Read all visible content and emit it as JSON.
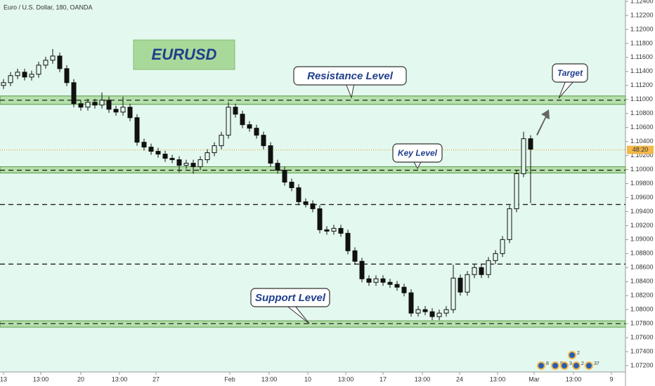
{
  "chart_data": {
    "type": "candlestick",
    "title": "Euro / U.S. Dollar, 180, OANDA",
    "color": "#111111",
    "background": "#e3f8ee",
    "open": [
      1.112,
      1.1124,
      1.1134,
      1.1139,
      1.1132,
      1.1136,
      1.1149,
      1.1156,
      1.1162,
      1.1144,
      1.1124,
      1.1094,
      1.1089,
      1.1096,
      1.1092,
      1.1099,
      1.1086,
      1.1082,
      1.1089,
      1.1074,
      1.1039,
      1.1032,
      1.1026,
      1.1022,
      1.1016,
      1.1014,
      1.1006,
      1.1009,
      1.1004,
      1.1014,
      1.1024,
      1.1034,
      1.1049,
      1.1089,
      1.1079,
      1.1064,
      1.1059,
      1.1049,
      1.1034,
      1.1009,
      1.0999,
      1.0982,
      1.0974,
      1.0954,
      1.0951,
      1.0944,
      1.0914,
      1.0912,
      1.0916,
      1.0909,
      1.0884,
      1.0869,
      1.0844,
      1.0839,
      1.0844,
      1.0839,
      1.0836,
      1.0832,
      1.0824,
      1.0795,
      1.08,
      1.0797,
      1.079,
      1.0795,
      1.08,
      1.0845,
      1.0825,
      1.085,
      1.086,
      1.085,
      1.087,
      1.088,
      1.09,
      1.0944,
      1.0994,
      1.1044
    ],
    "high": [
      1.1129,
      1.1139,
      1.1144,
      1.1144,
      1.1141,
      1.1154,
      1.1161,
      1.1172,
      1.1167,
      1.1149,
      1.1129,
      1.1099,
      1.1101,
      1.1101,
      1.111,
      1.1104,
      1.1091,
      1.1104,
      1.1094,
      1.1079,
      1.1044,
      1.1037,
      1.1031,
      1.1027,
      1.1021,
      1.1019,
      1.1014,
      1.1014,
      1.1019,
      1.1029,
      1.1039,
      1.1054,
      1.1096,
      1.1094,
      1.1084,
      1.1069,
      1.1064,
      1.1054,
      1.1039,
      1.1014,
      1.1004,
      1.0987,
      1.0979,
      1.0959,
      1.0956,
      1.0949,
      1.0919,
      1.0921,
      1.0921,
      1.0914,
      1.0889,
      1.0874,
      1.0849,
      1.0849,
      1.0849,
      1.0844,
      1.0841,
      1.0837,
      1.0829,
      1.0805,
      1.0805,
      1.0802,
      1.08,
      1.0805,
      1.0864,
      1.085,
      1.0855,
      1.0865,
      1.0865,
      1.0875,
      1.0885,
      1.0905,
      1.0949,
      1.0999,
      1.1054,
      1.1049
    ],
    "low": [
      1.1115,
      1.1119,
      1.1129,
      1.1127,
      1.1127,
      1.1131,
      1.1144,
      1.1151,
      1.1139,
      1.1119,
      1.1089,
      1.1084,
      1.1084,
      1.1087,
      1.1087,
      1.1081,
      1.1077,
      1.1077,
      1.1069,
      1.1034,
      1.1027,
      1.1021,
      1.1017,
      1.1011,
      1.1009,
      1.0996,
      1.1001,
      1.0994,
      1.0999,
      1.1009,
      1.1019,
      1.1029,
      1.1044,
      1.1074,
      1.1059,
      1.1054,
      1.1044,
      1.1029,
      1.1004,
      1.0994,
      1.0977,
      1.0969,
      1.0949,
      1.0946,
      1.0939,
      1.0909,
      1.0907,
      1.0907,
      1.0904,
      1.0879,
      1.0864,
      1.0839,
      1.0834,
      1.0834,
      1.0834,
      1.0831,
      1.0827,
      1.0819,
      1.079,
      1.079,
      1.0792,
      1.0785,
      1.0785,
      1.079,
      1.0795,
      1.082,
      1.082,
      1.0845,
      1.0845,
      1.0845,
      1.0865,
      1.0875,
      1.0895,
      1.0939,
      1.0989,
      1.0952
    ],
    "close": [
      1.1124,
      1.1134,
      1.1139,
      1.1132,
      1.1136,
      1.1149,
      1.1156,
      1.1162,
      1.1144,
      1.1124,
      1.1094,
      1.1089,
      1.1096,
      1.1092,
      1.1099,
      1.1086,
      1.1082,
      1.1089,
      1.1074,
      1.1039,
      1.1032,
      1.1026,
      1.1022,
      1.1016,
      1.1014,
      1.1006,
      1.1009,
      1.1004,
      1.1014,
      1.1024,
      1.1034,
      1.1049,
      1.1089,
      1.1079,
      1.1064,
      1.1059,
      1.1049,
      1.1034,
      1.1009,
      1.0999,
      1.0982,
      1.0974,
      1.0954,
      1.0951,
      1.0944,
      1.0914,
      1.0912,
      1.0916,
      1.0909,
      1.0884,
      1.0869,
      1.0844,
      1.0839,
      1.0844,
      1.0839,
      1.0836,
      1.0832,
      1.0824,
      1.0795,
      1.08,
      1.0797,
      1.079,
      1.0795,
      1.08,
      1.0845,
      1.0825,
      1.085,
      1.086,
      1.085,
      1.087,
      1.088,
      1.09,
      1.0944,
      1.0994,
      1.1044,
      1.1029
    ],
    "xlim": [
      -0.5,
      88.5
    ],
    "xticks": [
      {
        "value": 0,
        "label": "13"
      },
      {
        "value": 5.3,
        "label": "13:00"
      },
      {
        "value": 11,
        "label": "20"
      },
      {
        "value": 16.5,
        "label": "13:00"
      },
      {
        "value": 21.7,
        "label": "27"
      },
      {
        "value": 32.2,
        "label": "Feb"
      },
      {
        "value": 37.8,
        "label": "13:00"
      },
      {
        "value": 43.3,
        "label": "10"
      },
      {
        "value": 48.7,
        "label": "13:00"
      },
      {
        "value": 54,
        "label": "17"
      },
      {
        "value": 59.6,
        "label": "13:00"
      },
      {
        "value": 64.9,
        "label": "24"
      },
      {
        "value": 70.3,
        "label": "13:00"
      },
      {
        "value": 75.5,
        "label": "Mar"
      },
      {
        "value": 81.1,
        "label": "13:00"
      },
      {
        "value": 86.5,
        "label": "9"
      }
    ],
    "ylim": [
      1.0711,
      1.1242
    ],
    "yticks": [
      {
        "value": 1.072,
        "label": "1.07200"
      },
      {
        "value": 1.074,
        "label": "1.07400"
      },
      {
        "value": 1.076,
        "label": "1.07600"
      },
      {
        "value": 1.078,
        "label": "1.07800"
      },
      {
        "value": 1.08,
        "label": "1.08000"
      },
      {
        "value": 1.082,
        "label": "1.08200"
      },
      {
        "value": 1.084,
        "label": "1.08400"
      },
      {
        "value": 1.086,
        "label": "1.08600"
      },
      {
        "value": 1.088,
        "label": "1.08800"
      },
      {
        "value": 1.09,
        "label": "1.09000"
      },
      {
        "value": 1.092,
        "label": "1.09200"
      },
      {
        "value": 1.094,
        "label": "1.09400"
      },
      {
        "value": 1.096,
        "label": "1.09600"
      },
      {
        "value": 1.098,
        "label": "1.09800"
      },
      {
        "value": 1.1,
        "label": "1.10000"
      },
      {
        "value": 1.102,
        "label": "1.10200"
      },
      {
        "value": 1.104,
        "label": "1.10400"
      },
      {
        "value": 1.106,
        "label": "1.10600"
      },
      {
        "value": 1.108,
        "label": "1.10800"
      },
      {
        "value": 1.11,
        "label": "1.11000"
      },
      {
        "value": 1.112,
        "label": "1.11200"
      },
      {
        "value": 1.114,
        "label": "1.11400"
      },
      {
        "value": 1.116,
        "label": "1.11600"
      },
      {
        "value": 1.118,
        "label": "1.11800"
      },
      {
        "value": 1.12,
        "label": "1.12000"
      },
      {
        "value": 1.122,
        "label": "1.12200"
      },
      {
        "value": 1.124,
        "label": "1.12400"
      }
    ],
    "zones": [
      {
        "from": 1.1093,
        "to": 1.1105
      },
      {
        "from": 1.0995,
        "to": 1.1004
      },
      {
        "from": 1.0775,
        "to": 1.0784
      }
    ],
    "levels": [
      1.1099,
      1.0999,
      1.095,
      1.0865,
      1.078
    ],
    "current_price": 1.1028,
    "countdown": "48:20",
    "annotations": [
      "EURUSD",
      "Resistance Level",
      "Key Level",
      "Target",
      "Support Level"
    ],
    "events": [
      "8",
      "8",
      "3",
      "2",
      "37",
      "2"
    ]
  }
}
